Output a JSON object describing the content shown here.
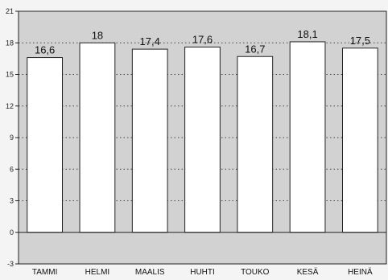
{
  "chart_data": {
    "type": "bar",
    "title": "",
    "xlabel": "",
    "ylabel": "",
    "categories": [
      "TAMMI",
      "HELMI",
      "MAALIS",
      "HUHTI",
      "TOUKO",
      "KESÄ",
      "HEINÄ"
    ],
    "values": [
      16.6,
      18,
      17.4,
      17.6,
      16.7,
      18.1,
      17.5
    ],
    "value_labels": [
      "16,6",
      "18",
      "17,4",
      "17,6",
      "16,7",
      "18,1",
      "17,5"
    ],
    "ylim": [
      -3,
      21
    ],
    "yticks": [
      -3,
      0,
      3,
      6,
      9,
      12,
      15,
      18,
      21
    ],
    "grid": true,
    "colors": {
      "plot_background": "#d2d2d2",
      "bar_fill": "#ffffff",
      "bar_stroke": "#222222",
      "grid": "#444444",
      "axis": "#222222"
    }
  }
}
